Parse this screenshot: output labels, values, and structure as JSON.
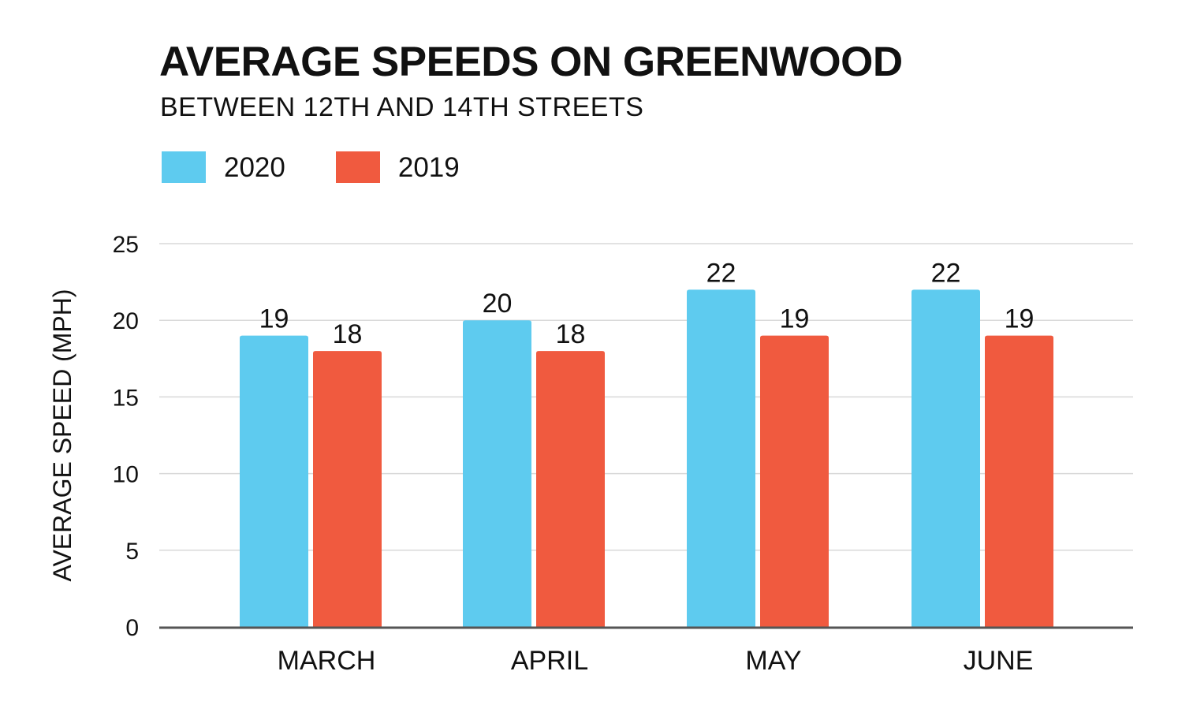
{
  "chart_data": {
    "type": "bar",
    "title": "AVERAGE SPEEDS ON GREENWOOD",
    "subtitle": "BETWEEN 12TH AND 14TH STREETS",
    "xlabel": "",
    "ylabel": "AVERAGE SPEED (MPH)",
    "categories": [
      "MARCH",
      "APRIL",
      "MAY",
      "JUNE"
    ],
    "series": [
      {
        "name": "2020",
        "color": "#5ecbef",
        "values": [
          19,
          20,
          22,
          22
        ]
      },
      {
        "name": "2019",
        "color": "#f05a3f",
        "values": [
          18,
          18,
          19,
          19
        ]
      }
    ],
    "ylim": [
      0,
      25
    ],
    "yticks": [
      0,
      5,
      10,
      15,
      20,
      25
    ],
    "grid": true,
    "legend_position": "top-left",
    "data_labels": true
  }
}
